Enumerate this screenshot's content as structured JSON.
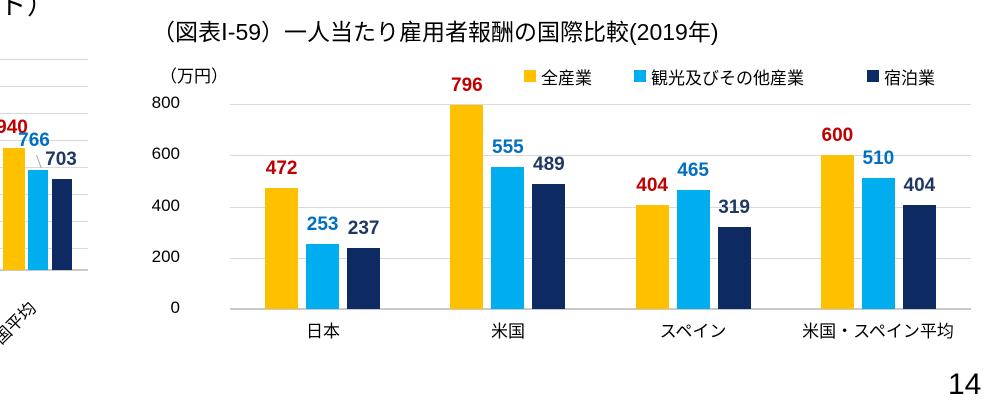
{
  "page": {
    "number": "14",
    "left_edge_title_fragment": "ド）"
  },
  "chart_data": [
    {
      "type": "bar",
      "title": "（図表Ⅰ-59）一人当たり雇用者報酬の国際比較(2019年)",
      "unit_label": "（万円）",
      "categories": [
        "日本",
        "米国",
        "スペイン",
        "米国・スペイン平均"
      ],
      "series": [
        {
          "name": "全産業",
          "color": "#FFC000",
          "label_color": "#C00000",
          "values": [
            472,
            796,
            404,
            600
          ]
        },
        {
          "name": "観光及びその他産業",
          "color": "#00AEEF",
          "label_color": "#0070C0",
          "values": [
            253,
            555,
            465,
            510
          ]
        },
        {
          "name": "宿泊業",
          "color": "#0E2A63",
          "label_color": "#1F3864",
          "values": [
            237,
            489,
            319,
            404
          ]
        }
      ],
      "ylim": [
        0,
        800
      ],
      "yticks": [
        0,
        200,
        400,
        600,
        800
      ],
      "grid": true,
      "legend_position": "top"
    },
    {
      "type": "bar",
      "clipped_at_left_edge": true,
      "values": [
        940,
        766,
        703
      ],
      "colors": [
        "#FFC000",
        "#00AEEF",
        "#0E2A63"
      ],
      "label_colors": [
        "#C00000",
        "#0070C0",
        "#1F3864"
      ],
      "category_label_fragment": "国平均"
    }
  ]
}
